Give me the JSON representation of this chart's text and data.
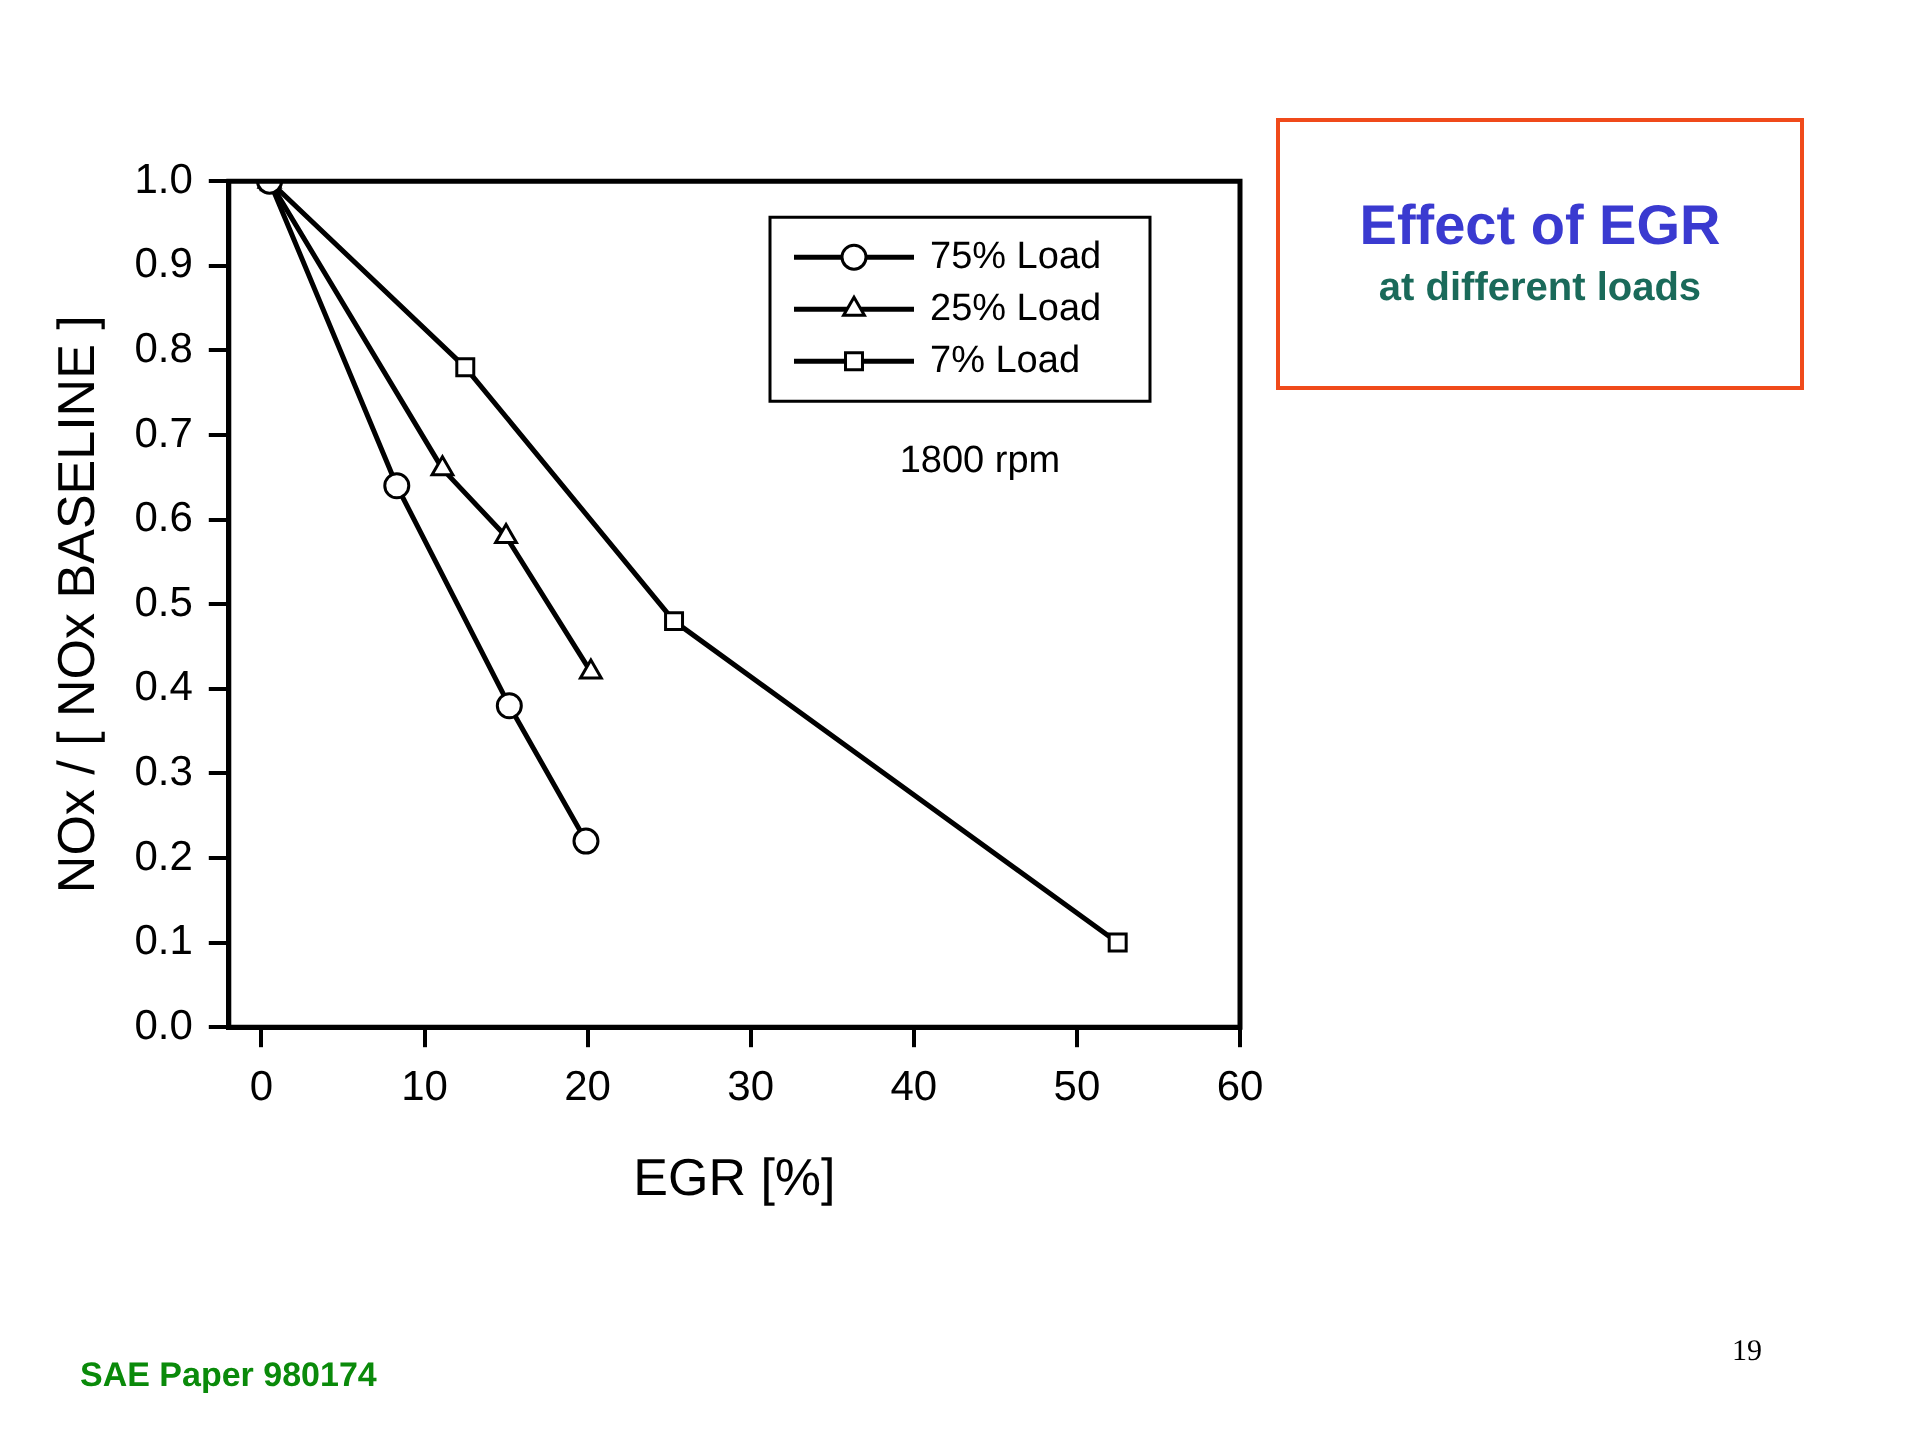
{
  "chart_data": {
    "type": "line",
    "title": "Effect of EGR",
    "subtitle": "at different loads",
    "xlabel": "EGR [%]",
    "ylabel": "NOx / [ NOx BASELINE ]",
    "xlim": [
      -2,
      60
    ],
    "xticks": [
      0,
      10,
      20,
      30,
      40,
      50,
      60
    ],
    "ylim": [
      0,
      1
    ],
    "yticks": [
      {
        "value": 0,
        "label": "0.0"
      },
      0.1,
      0.2,
      0.3,
      0.4,
      0.5,
      0.6,
      0.7,
      0.8,
      0.9,
      {
        "value": 1,
        "label": "1.0"
      }
    ],
    "series": [
      {
        "name": "75% Load",
        "color": "#000000",
        "marker": "circle",
        "x": [
          0.5,
          8.3,
          15.2,
          19.9
        ],
        "values": [
          1.0,
          0.64,
          0.38,
          0.22
        ]
      },
      {
        "name": "25% Load",
        "color": "#000000",
        "marker": "triangle",
        "x": [
          0.5,
          11.1,
          15.0,
          20.2
        ],
        "values": [
          1.0,
          0.66,
          0.58,
          0.42
        ]
      },
      {
        "name": "7% Load",
        "color": "#000000",
        "marker": "square",
        "x": [
          0.5,
          12.5,
          25.3,
          52.5
        ],
        "values": [
          1.0,
          0.78,
          0.48,
          0.1
        ]
      }
    ],
    "legend": "top right",
    "grid": false,
    "line_style": "solid",
    "annotations": [
      "1800 rpm",
      "SAE Paper 980174",
      "19"
    ]
  }
}
